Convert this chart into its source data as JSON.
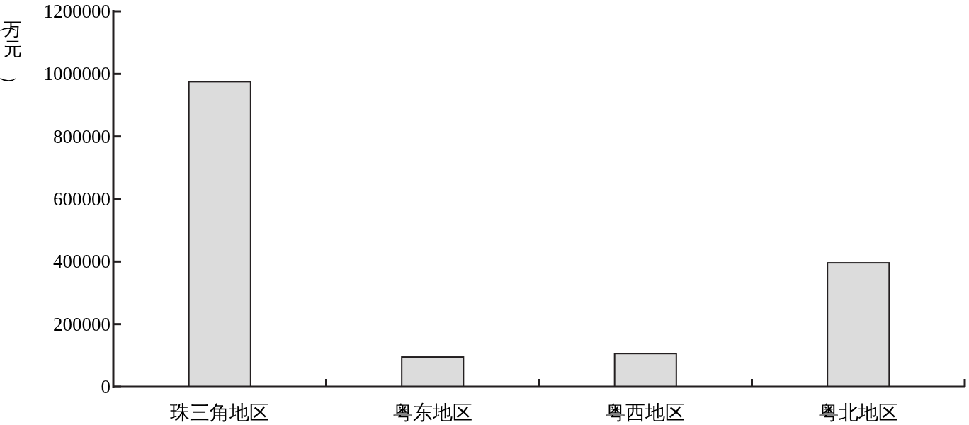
{
  "chart_data": {
    "type": "bar",
    "ylabel": "（万元）",
    "categories": [
      "珠三角地区",
      "粤东地区",
      "粤西地区",
      "粤北地区"
    ],
    "values": [
      975000,
      95000,
      106000,
      396000
    ],
    "color": "#dcdcdc",
    "ylim": [
      0,
      1200000
    ],
    "yticks": [
      0,
      200000,
      400000,
      600000,
      800000,
      1000000,
      1200000
    ],
    "grid": false
  }
}
